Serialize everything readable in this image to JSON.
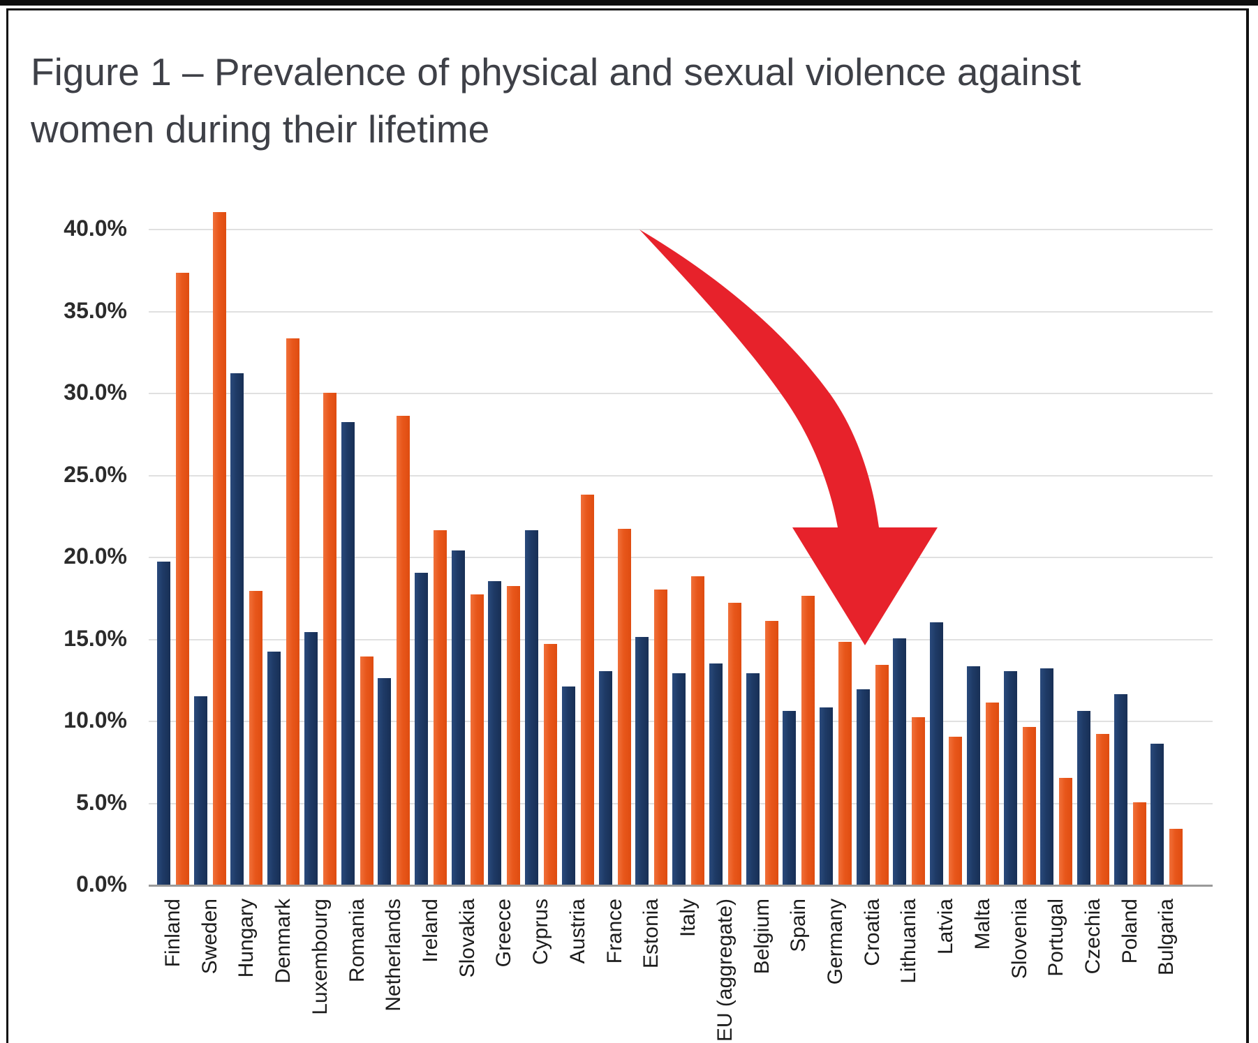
{
  "figure": {
    "title_line1": "Figure 1 – Prevalence of physical and sexual violence against",
    "title_line2": "women during their lifetime"
  },
  "chart_data": {
    "type": "bar",
    "title": "Figure 1 – Prevalence of physical and sexual violence against women during their lifetime",
    "categories": [
      "Finland",
      "Sweden",
      "Hungary",
      "Denmark",
      "Luxembourg",
      "Romania",
      "Netherlands",
      "Ireland",
      "Slovakia",
      "Greece",
      "Cyprus",
      "Austria",
      "France",
      "Estonia",
      "Italy",
      "EU (aggregate)",
      "Belgium",
      "Spain",
      "Germany",
      "Croatia",
      "Lithuania",
      "Latvia",
      "Malta",
      "Slovenia",
      "Portugal",
      "Czechia",
      "Poland",
      "Bulgaria"
    ],
    "series": [
      {
        "name": "navy",
        "color": "#1e3a66",
        "values": [
          19.7,
          11.5,
          31.2,
          14.2,
          15.4,
          28.2,
          12.6,
          19.0,
          20.4,
          18.5,
          21.6,
          12.1,
          13.0,
          15.1,
          12.9,
          13.5,
          12.9,
          10.6,
          10.8,
          11.9,
          15.0,
          16.0,
          13.3,
          13.0,
          13.2,
          10.6,
          11.6,
          8.6
        ]
      },
      {
        "name": "orange",
        "color": "#e8571b",
        "values": [
          37.3,
          41.0,
          17.9,
          33.3,
          30.0,
          13.9,
          28.6,
          21.6,
          17.7,
          18.2,
          14.7,
          23.8,
          21.7,
          18.0,
          18.8,
          17.2,
          16.1,
          17.6,
          14.8,
          13.4,
          10.2,
          9.0,
          11.1,
          9.6,
          6.5,
          9.2,
          5.0,
          3.4
        ]
      }
    ],
    "y_ticks": [
      "0.0%",
      "5.0%",
      "10.0%",
      "15.0%",
      "20.0%",
      "25.0%",
      "30.0%",
      "35.0%",
      "40.0%"
    ],
    "ylim": [
      0,
      42
    ],
    "grid": true,
    "legend": false,
    "annotation": "red-curved-down-arrow pointing at Croatia group"
  },
  "colors": {
    "navy_bar": "#1e3a66",
    "orange_bar": "#e8571b",
    "arrow_red": "#e7222b",
    "title_text": "#3e4047",
    "gridline": "#e0e0e0",
    "axis_line": "#9a9a9a",
    "frame": "#111111"
  }
}
